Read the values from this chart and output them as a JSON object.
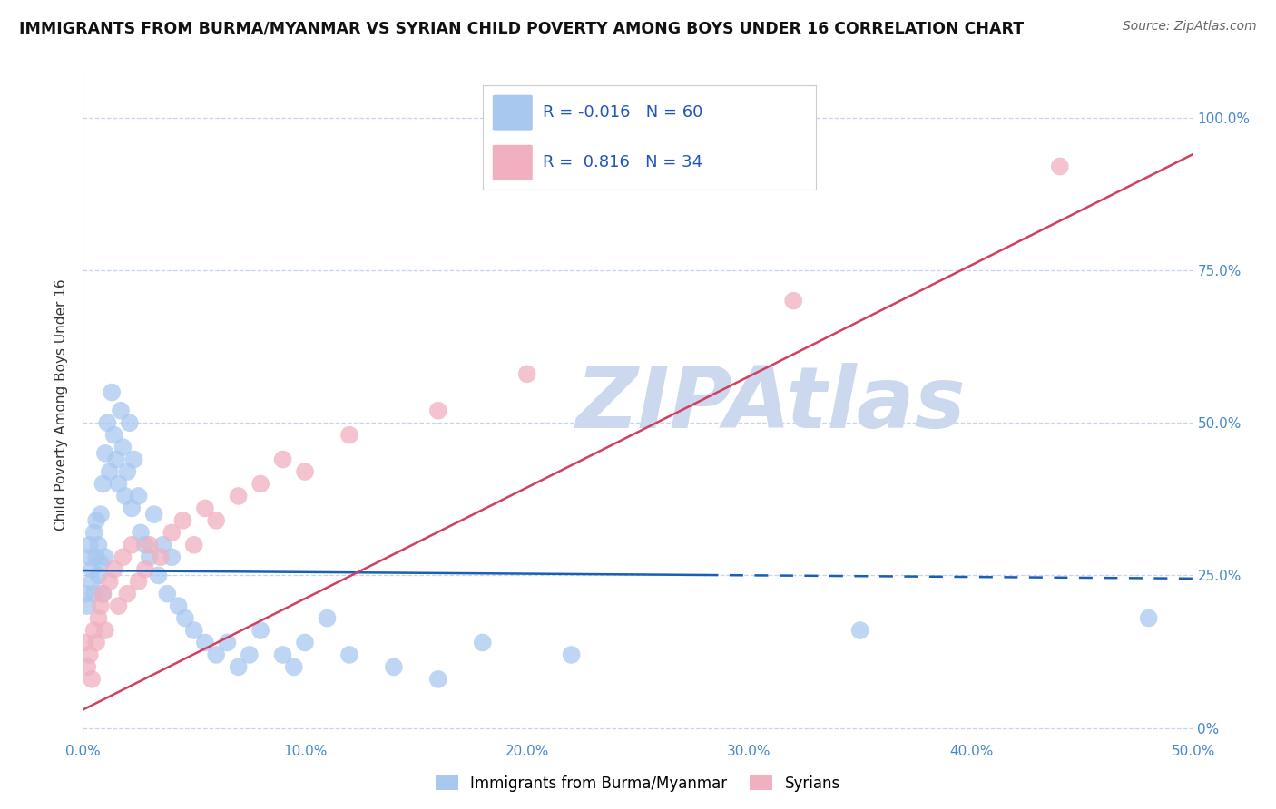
{
  "title": "IMMIGRANTS FROM BURMA/MYANMAR VS SYRIAN CHILD POVERTY AMONG BOYS UNDER 16 CORRELATION CHART",
  "source": "Source: ZipAtlas.com",
  "ylabel": "Child Poverty Among Boys Under 16",
  "xlim": [
    0,
    0.5
  ],
  "ylim": [
    -0.02,
    1.08
  ],
  "blue_label": "Immigrants from Burma/Myanmar",
  "pink_label": "Syrians",
  "blue_R": -0.016,
  "blue_N": 60,
  "pink_R": 0.816,
  "pink_N": 34,
  "blue_color": "#a8c8f0",
  "pink_color": "#f0b0c0",
  "blue_line_color": "#1a5eb8",
  "pink_line_color": "#d04060",
  "watermark": "ZIPAtlas",
  "watermark_color": "#ccd8ee",
  "background_color": "#ffffff",
  "grid_color": "#c8d4e8",
  "blue_line_x0": 0.0,
  "blue_line_x1": 0.5,
  "blue_line_y0": 0.258,
  "blue_line_y1": 0.245,
  "blue_line_solid_end": 0.28,
  "pink_line_x0": 0.0,
  "pink_line_x1": 0.5,
  "pink_line_y0": 0.03,
  "pink_line_y1": 0.94,
  "blue_x": [
    0.001,
    0.002,
    0.003,
    0.003,
    0.004,
    0.004,
    0.005,
    0.005,
    0.006,
    0.006,
    0.007,
    0.007,
    0.008,
    0.008,
    0.009,
    0.009,
    0.01,
    0.01,
    0.011,
    0.012,
    0.013,
    0.014,
    0.015,
    0.016,
    0.017,
    0.018,
    0.019,
    0.02,
    0.021,
    0.022,
    0.023,
    0.025,
    0.026,
    0.028,
    0.03,
    0.032,
    0.034,
    0.036,
    0.038,
    0.04,
    0.043,
    0.046,
    0.05,
    0.055,
    0.06,
    0.065,
    0.07,
    0.075,
    0.08,
    0.09,
    0.095,
    0.1,
    0.11,
    0.12,
    0.14,
    0.16,
    0.18,
    0.22,
    0.35,
    0.48
  ],
  "blue_y": [
    0.22,
    0.2,
    0.28,
    0.3,
    0.24,
    0.26,
    0.32,
    0.22,
    0.28,
    0.34,
    0.25,
    0.3,
    0.35,
    0.27,
    0.4,
    0.22,
    0.45,
    0.28,
    0.5,
    0.42,
    0.55,
    0.48,
    0.44,
    0.4,
    0.52,
    0.46,
    0.38,
    0.42,
    0.5,
    0.36,
    0.44,
    0.38,
    0.32,
    0.3,
    0.28,
    0.35,
    0.25,
    0.3,
    0.22,
    0.28,
    0.2,
    0.18,
    0.16,
    0.14,
    0.12,
    0.14,
    0.1,
    0.12,
    0.16,
    0.12,
    0.1,
    0.14,
    0.18,
    0.12,
    0.1,
    0.08,
    0.14,
    0.12,
    0.16,
    0.18
  ],
  "pink_x": [
    0.001,
    0.002,
    0.003,
    0.004,
    0.005,
    0.006,
    0.007,
    0.008,
    0.009,
    0.01,
    0.012,
    0.014,
    0.016,
    0.018,
    0.02,
    0.022,
    0.025,
    0.028,
    0.03,
    0.035,
    0.04,
    0.045,
    0.05,
    0.055,
    0.06,
    0.07,
    0.08,
    0.09,
    0.1,
    0.12,
    0.16,
    0.2,
    0.32,
    0.44
  ],
  "pink_y": [
    0.14,
    0.1,
    0.12,
    0.08,
    0.16,
    0.14,
    0.18,
    0.2,
    0.22,
    0.16,
    0.24,
    0.26,
    0.2,
    0.28,
    0.22,
    0.3,
    0.24,
    0.26,
    0.3,
    0.28,
    0.32,
    0.34,
    0.3,
    0.36,
    0.34,
    0.38,
    0.4,
    0.44,
    0.42,
    0.48,
    0.52,
    0.58,
    0.7,
    0.92
  ]
}
